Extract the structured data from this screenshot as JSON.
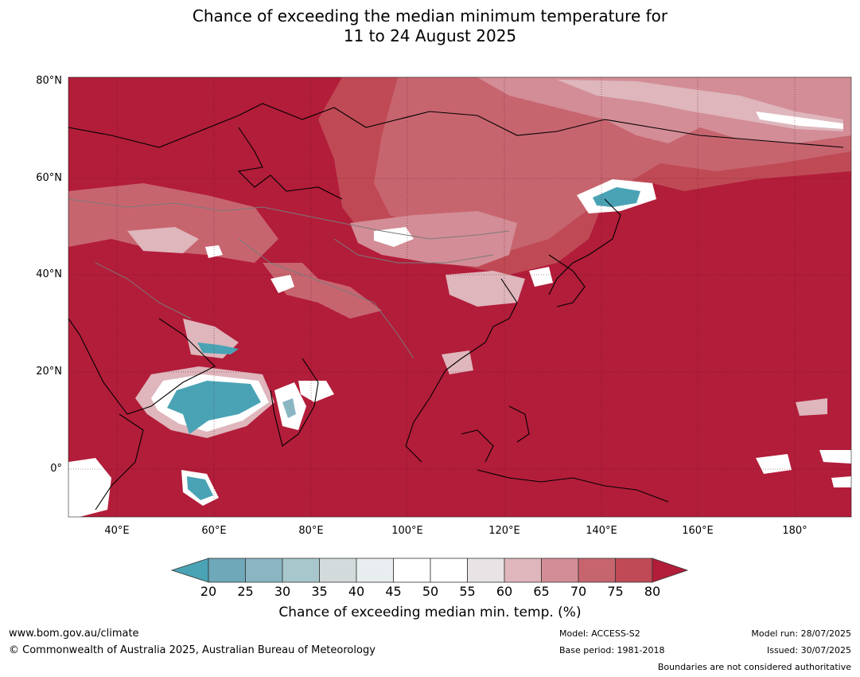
{
  "title": {
    "line1": "Chance of exceeding the median minimum temperature for",
    "line2": "11 to 24 August 2025"
  },
  "axes": {
    "lat_labels": [
      "80°N",
      "60°N",
      "40°N",
      "20°N",
      "0°"
    ],
    "lon_labels": [
      "40°E",
      "60°E",
      "80°E",
      "100°E",
      "120°E",
      "140°E",
      "160°E",
      "180°"
    ]
  },
  "colorbar": {
    "ticks": [
      "20",
      "25",
      "30",
      "35",
      "40",
      "45",
      "50",
      "55",
      "60",
      "65",
      "70",
      "75",
      "80"
    ],
    "colors": [
      "#6fa8b9",
      "#8ab6c4",
      "#a8c7cd",
      "#d3dadb",
      "#e8eeef",
      "#ffffff",
      "#ffffff",
      "#e8e4e5",
      "#deb6bc",
      "#d38d96",
      "#c7656f",
      "#bf4a55"
    ],
    "under_color": "#4aa3b5",
    "over_color": "#b21d3a",
    "label": "Chance of exceeding median min. temp. (%)"
  },
  "map_colors": {
    "c80": "#b21d3a",
    "c75": "#bf4a55",
    "c70": "#c7656f",
    "c65": "#d38d96",
    "c60": "#deb6bc",
    "c50": "#ffffff",
    "c30": "#8ab6c4",
    "c20": "#4aa3b5"
  },
  "footer": {
    "website": "www.bom.gov.au/climate",
    "copyright": "© Commonwealth of Australia 2025, Australian Bureau of Meteorology",
    "model": "Model: ACCESS-S2",
    "base_period": "Base period: 1981-2018",
    "model_run": "Model run: 28/07/2025",
    "issued": "Issued: 30/07/2025",
    "disclaimer": "Boundaries are not considered authoritative"
  }
}
